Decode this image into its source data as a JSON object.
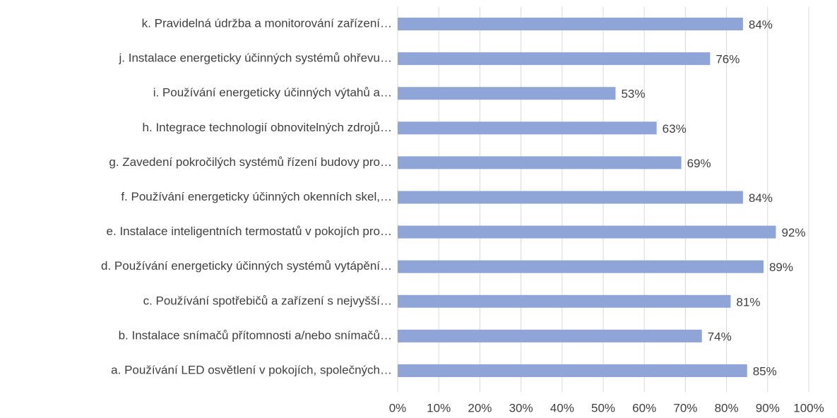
{
  "chart_data": {
    "type": "bar",
    "orientation": "horizontal",
    "categories": [
      "a. Používání LED osvětlení v pokojích, společných…",
      "b. Instalace snímačů přítomnosti a/nebo snímačů…",
      "c. Používání spotřebičů a zařízení s nejvyšší…",
      "d. Používání energeticky účinných systémů vytápění…",
      "e. Instalace inteligentních termostatů v pokojích pro…",
      "f. Používání energeticky účinných okenních skel,…",
      "g. Zavedení pokročilých systémů řízení budovy pro…",
      "h. Integrace technologií obnovitelných zdrojů…",
      "i. Používání energeticky účinných výtahů a…",
      "j. Instalace energeticky účinných systémů ohřevu…",
      "k. Pravidelná údržba a monitorování zařízení…"
    ],
    "values": [
      85,
      74,
      81,
      89,
      92,
      84,
      69,
      63,
      53,
      76,
      84
    ],
    "value_labels": [
      "85%",
      "74%",
      "81%",
      "89%",
      "92%",
      "84%",
      "69%",
      "63%",
      "53%",
      "76%",
      "84%"
    ],
    "color": "#8fa4d7",
    "xlim": [
      0,
      100
    ],
    "xticks": [
      {
        "value": 0,
        "label": "0%"
      },
      {
        "value": 10,
        "label": "10%"
      },
      {
        "value": 20,
        "label": "20%"
      },
      {
        "value": 30,
        "label": "30%"
      },
      {
        "value": 40,
        "label": "40%"
      },
      {
        "value": 50,
        "label": "50%"
      },
      {
        "value": 60,
        "label": "60%"
      },
      {
        "value": 70,
        "label": "70%"
      },
      {
        "value": 80,
        "label": "80%"
      },
      {
        "value": 90,
        "label": "90%"
      },
      {
        "value": 100,
        "label": "100%"
      }
    ],
    "grid": true
  }
}
